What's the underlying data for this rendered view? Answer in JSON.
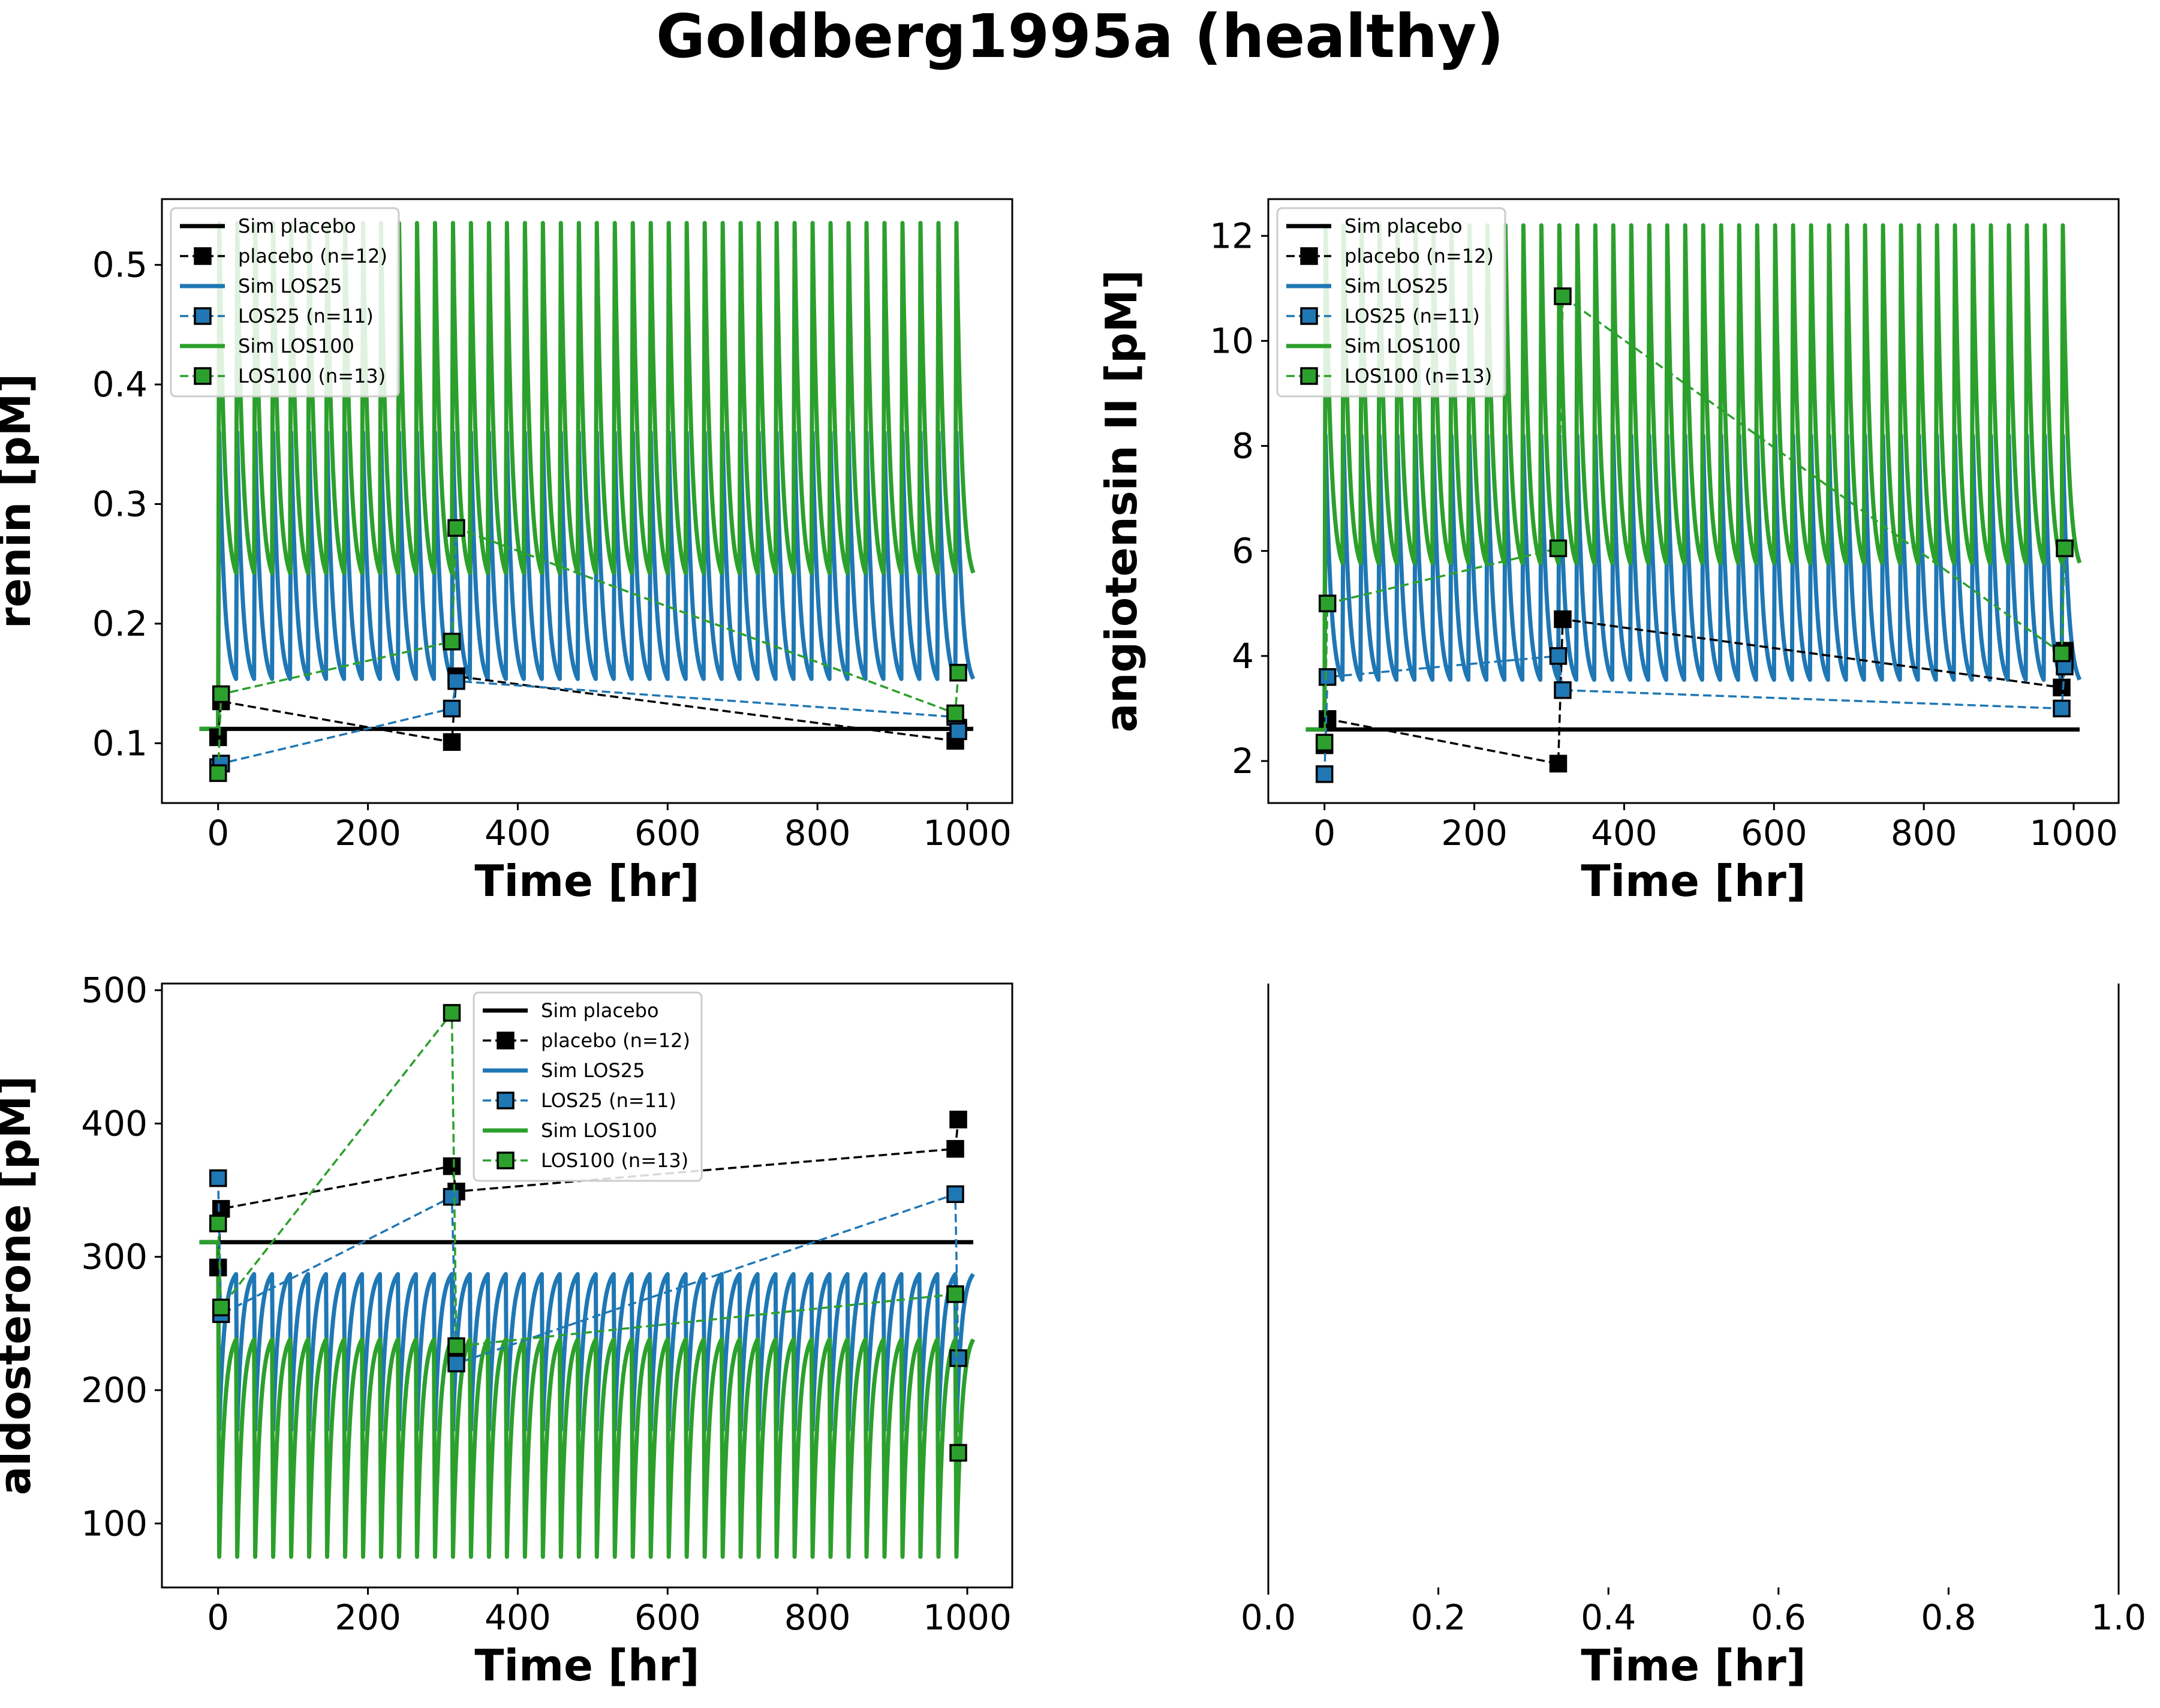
{
  "figure": {
    "title": "Goldberg1995a (healthy)",
    "colors": {
      "placebo": "#000000",
      "los25": "#1f77b4",
      "los100": "#2ca02c",
      "axis": "#000000",
      "background": "#ffffff"
    }
  },
  "chart_data": [
    {
      "type": "line",
      "panel": "top-left",
      "xlabel": "Time [hr]",
      "ylabel": "renin [pM]",
      "xlim": [
        -75,
        1060
      ],
      "ylim": [
        0.05,
        0.555
      ],
      "xticks": [
        0,
        200,
        400,
        600,
        800,
        1000
      ],
      "xtick_labels": [
        "0",
        "200",
        "400",
        "600",
        "800",
        "1000"
      ],
      "yticks": [
        0.1,
        0.2,
        0.3,
        0.4,
        0.5
      ],
      "ytick_labels": [
        "0.1",
        "0.2",
        "0.3",
        "0.4",
        "0.5"
      ],
      "grid": false,
      "legend_position": "upper-left",
      "simulations": [
        {
          "name": "Sim placebo",
          "color_key": "placebo",
          "kind": "flat",
          "start": -25,
          "end": 1008,
          "value": 0.112
        },
        {
          "name": "Sim LOS25",
          "color_key": "los25",
          "kind": "oscillation",
          "start": 0,
          "end": 1008,
          "period": 24,
          "n_cycles": 42,
          "baseline": 0.112,
          "peak": 0.36,
          "trough": 0.145
        },
        {
          "name": "Sim LOS100",
          "color_key": "los100",
          "kind": "oscillation",
          "start": 0,
          "end": 1008,
          "period": 24,
          "n_cycles": 42,
          "baseline": 0.112,
          "peak": 0.535,
          "trough": 0.23
        }
      ],
      "observations": [
        {
          "name": "placebo (n=12)",
          "color_key": "placebo",
          "x": [
            0,
            4,
            312,
            318,
            984,
            988
          ],
          "y": [
            0.105,
            0.135,
            0.101,
            0.156,
            0.102,
            0.113
          ]
        },
        {
          "name": "LOS25 (n=11)",
          "color_key": "los25",
          "x": [
            0,
            4,
            312,
            318,
            984,
            988
          ],
          "y": [
            0.08,
            0.083,
            0.129,
            0.152,
            0.122,
            0.11
          ]
        },
        {
          "name": "LOS100 (n=13)",
          "color_key": "los100",
          "x": [
            0,
            4,
            312,
            318,
            984,
            988
          ],
          "y": [
            0.075,
            0.141,
            0.185,
            0.28,
            0.125,
            0.159
          ]
        }
      ]
    },
    {
      "type": "line",
      "panel": "top-right",
      "xlabel": "Time [hr]",
      "ylabel": "angiotensin II [pM]",
      "xlim": [
        -75,
        1060
      ],
      "ylim": [
        1.2,
        12.7
      ],
      "xticks": [
        0,
        200,
        400,
        600,
        800,
        1000
      ],
      "xtick_labels": [
        "0",
        "200",
        "400",
        "600",
        "800",
        "1000"
      ],
      "yticks": [
        2,
        4,
        6,
        8,
        10,
        12
      ],
      "ytick_labels": [
        "2",
        "4",
        "6",
        "8",
        "10",
        "12"
      ],
      "grid": false,
      "legend_position": "upper-left",
      "simulations": [
        {
          "name": "Sim placebo",
          "color_key": "placebo",
          "kind": "flat",
          "start": -25,
          "end": 1008,
          "value": 2.6
        },
        {
          "name": "Sim LOS25",
          "color_key": "los25",
          "kind": "oscillation",
          "start": 0,
          "end": 1008,
          "period": 24,
          "n_cycles": 42,
          "baseline": 2.6,
          "peak": 8.2,
          "trough": 3.35
        },
        {
          "name": "Sim LOS100",
          "color_key": "los100",
          "kind": "oscillation",
          "start": 0,
          "end": 1008,
          "period": 24,
          "n_cycles": 42,
          "baseline": 2.6,
          "peak": 12.2,
          "trough": 5.5
        }
      ],
      "observations": [
        {
          "name": "placebo (n=12)",
          "color_key": "placebo",
          "x": [
            0,
            4,
            312,
            318,
            984,
            988
          ],
          "y": [
            2.3,
            2.8,
            1.95,
            4.7,
            3.4,
            4.1
          ]
        },
        {
          "name": "LOS25 (n=11)",
          "color_key": "los25",
          "x": [
            0,
            4,
            312,
            318,
            984,
            988
          ],
          "y": [
            1.75,
            3.6,
            4.0,
            3.35,
            3.0,
            3.8
          ]
        },
        {
          "name": "LOS100 (n=13)",
          "color_key": "los100",
          "x": [
            0,
            4,
            312,
            318,
            984,
            988
          ],
          "y": [
            2.35,
            5.0,
            6.05,
            10.85,
            4.05,
            6.05
          ]
        }
      ]
    },
    {
      "type": "line",
      "panel": "bottom-left",
      "xlabel": "Time [hr]",
      "ylabel": "aldosterone [pM]",
      "xlim": [
        -75,
        1060
      ],
      "ylim": [
        52,
        505
      ],
      "xticks": [
        0,
        200,
        400,
        600,
        800,
        1000
      ],
      "xtick_labels": [
        "0",
        "200",
        "400",
        "600",
        "800",
        "1000"
      ],
      "yticks": [
        100,
        200,
        300,
        400,
        500
      ],
      "ytick_labels": [
        "100",
        "200",
        "300",
        "400",
        "500"
      ],
      "grid": false,
      "legend_position": "upper-center",
      "simulations": [
        {
          "name": "Sim placebo",
          "color_key": "placebo",
          "kind": "flat",
          "start": -25,
          "end": 1008,
          "value": 311
        },
        {
          "name": "Sim LOS25",
          "color_key": "los25",
          "kind": "oscillation",
          "start": 0,
          "end": 1008,
          "period": 24,
          "n_cycles": 42,
          "baseline": 311,
          "peak": 170,
          "trough": 292
        },
        {
          "name": "Sim LOS100",
          "color_key": "los100",
          "kind": "oscillation",
          "start": 0,
          "end": 1008,
          "period": 24,
          "n_cycles": 42,
          "baseline": 311,
          "peak": 75,
          "trough": 245
        }
      ],
      "observations": [
        {
          "name": "placebo (n=12)",
          "color_key": "placebo",
          "x": [
            0,
            4,
            312,
            318,
            984,
            988
          ],
          "y": [
            292,
            336,
            368,
            349,
            381,
            403
          ]
        },
        {
          "name": "LOS25 (n=11)",
          "color_key": "los25",
          "x": [
            0,
            4,
            312,
            318,
            984,
            988
          ],
          "y": [
            359,
            257,
            345,
            220,
            347,
            224
          ]
        },
        {
          "name": "LOS100 (n=13)",
          "color_key": "los100",
          "x": [
            0,
            4,
            312,
            318,
            984,
            988
          ],
          "y": [
            325,
            262,
            483,
            233,
            272,
            153
          ]
        }
      ]
    },
    {
      "type": "line",
      "panel": "bottom-right",
      "xlabel": "Time [hr]",
      "ylabel": "",
      "xlim": [
        0,
        1
      ],
      "xticks": [
        0,
        0.2,
        0.4,
        0.6,
        0.8,
        1.0
      ],
      "xtick_labels": [
        "0.0",
        "0.2",
        "0.4",
        "0.6",
        "0.8",
        "1.0"
      ],
      "yticks": [],
      "grid": false,
      "empty": true,
      "simulations": [],
      "observations": []
    }
  ]
}
